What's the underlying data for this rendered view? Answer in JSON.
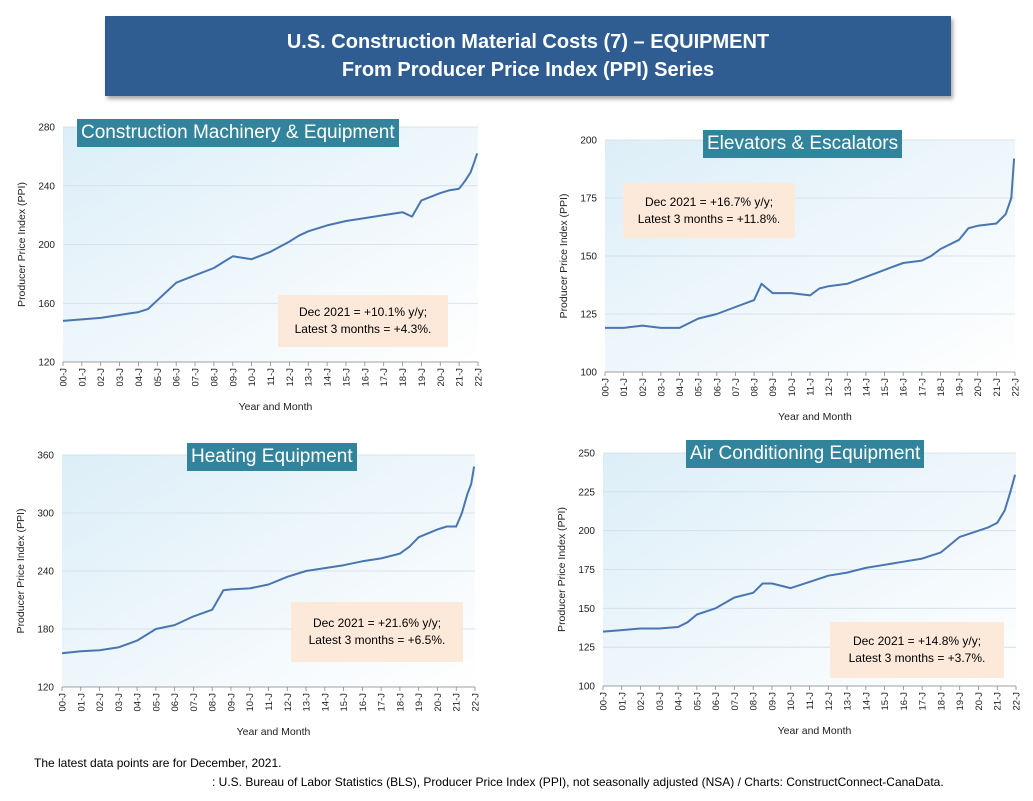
{
  "header": {
    "title_line1": "U.S. Construction Material Costs (7) – EQUIPMENT",
    "title_line2": "From Producer Price Index (PPI) Series"
  },
  "colors": {
    "banner": "#2f5d91",
    "title_box": "#31849b",
    "annotation": "#fde9d9",
    "line": "#4a76b0"
  },
  "footer": {
    "note": "The latest data points are for December, 2021.",
    "source": ": U.S. Bureau of Labor Statistics (BLS), Producer Price Index (PPI), not seasonally adjusted (NSA) / Charts: ConstructConnect-CanaData."
  },
  "chart_data": [
    {
      "type": "line",
      "title": "Construction Machinery & Equipment",
      "xlabel": "Year and Month",
      "ylabel": "Producer Price Index (PPI)",
      "ylim": [
        120,
        280
      ],
      "yticks": [
        "120",
        "160",
        "200",
        "240",
        "280"
      ],
      "xticks": [
        "00-J",
        "01-J",
        "02-J",
        "03-J",
        "04-J",
        "05-J",
        "06-J",
        "07-J",
        "08-J",
        "09-J",
        "10-J",
        "11-J",
        "12-J",
        "13-J",
        "14-J",
        "15-J",
        "16-J",
        "17-J",
        "18-J",
        "19-J",
        "20-J",
        "21-J",
        "22-J"
      ],
      "annotation": [
        "Dec 2021 = +10.1% y/y;",
        "Latest 3 months = +4.3%."
      ],
      "series": [
        {
          "x": [
            2000,
            2001,
            2002,
            2003,
            2003.5,
            2004,
            2004.5,
            2005,
            2005.5,
            2006,
            2007,
            2008,
            2008.5,
            2009,
            2009.5,
            2010,
            2011,
            2012,
            2012.5,
            2013,
            2014,
            2015,
            2016,
            2017,
            2018,
            2018.5,
            2019,
            2020,
            2020.5,
            2021,
            2021.3,
            2021.6,
            2021.8,
            2021.95
          ],
          "y": [
            148,
            149,
            150,
            152,
            153,
            154,
            156,
            162,
            168,
            174,
            179,
            184,
            188,
            192,
            191,
            190,
            195,
            202,
            206,
            209,
            213,
            216,
            218,
            220,
            222,
            219,
            230,
            235,
            237,
            238,
            243,
            249,
            256,
            262
          ]
        }
      ]
    },
    {
      "type": "line",
      "title": "Elevators & Escalators",
      "xlabel": "Year and Month",
      "ylabel": "Producer Price Index (PPI)",
      "ylim": [
        100,
        200
      ],
      "yticks": [
        "100",
        "125",
        "150",
        "175",
        "200"
      ],
      "xticks": [
        "00-J",
        "01-J",
        "02-J",
        "03-J",
        "04-J",
        "05-J",
        "06-J",
        "07-J",
        "08-J",
        "09-J",
        "10-J",
        "11-J",
        "12-J",
        "13-J",
        "14-J",
        "15-J",
        "16-J",
        "17-J",
        "18-J",
        "19-J",
        "20-J",
        "21-J",
        "22-J"
      ],
      "annotation": [
        "Dec 2021 = +16.7% y/y;",
        "Latest 3 months = +11.8%."
      ],
      "series": [
        {
          "x": [
            2000,
            2001,
            2002,
            2003,
            2004,
            2005,
            2006,
            2007,
            2008,
            2008.4,
            2008.7,
            2009,
            2009.5,
            2010,
            2011,
            2011.5,
            2012,
            2013,
            2014,
            2015,
            2016,
            2017,
            2017.5,
            2018,
            2019,
            2019.5,
            2020,
            2021,
            2021.5,
            2021.8,
            2021.95
          ],
          "y": [
            119,
            119,
            120,
            119,
            119,
            123,
            125,
            128,
            131,
            138,
            136,
            134,
            134,
            134,
            133,
            136,
            137,
            138,
            141,
            144,
            147,
            148,
            150,
            153,
            157,
            162,
            163,
            164,
            168,
            175,
            192
          ]
        }
      ]
    },
    {
      "type": "line",
      "title": "Heating Equipment",
      "xlabel": "Year and Month",
      "ylabel": "Producer Price Index (PPI)",
      "ylim": [
        120,
        360
      ],
      "yticks": [
        "120",
        "180",
        "240",
        "300",
        "360"
      ],
      "xticks": [
        "00-J",
        "01-J",
        "02-J",
        "03-J",
        "04-J",
        "05-J",
        "06-J",
        "07-J",
        "08-J",
        "09-J",
        "10-J",
        "11-J",
        "12-J",
        "13-J",
        "14-J",
        "15-J",
        "16-J",
        "17-J",
        "18-J",
        "19-J",
        "20-J",
        "21-J",
        "22-J"
      ],
      "annotation": [
        "Dec 2021 = +21.6% y/y;",
        "Latest 3 months = +6.5%."
      ],
      "series": [
        {
          "x": [
            2000,
            2001,
            2002,
            2003,
            2004,
            2005,
            2006,
            2007,
            2008,
            2008.3,
            2008.6,
            2009,
            2010,
            2011,
            2012,
            2013,
            2014,
            2015,
            2016,
            2017,
            2018,
            2018.5,
            2019,
            2020,
            2020.5,
            2021,
            2021.3,
            2021.6,
            2021.8,
            2021.95
          ],
          "y": [
            155,
            157,
            158,
            161,
            168,
            180,
            184,
            193,
            200,
            210,
            220,
            221,
            222,
            226,
            234,
            240,
            243,
            246,
            250,
            253,
            258,
            265,
            275,
            283,
            286,
            286,
            300,
            320,
            330,
            348
          ]
        }
      ]
    },
    {
      "type": "line",
      "title": "Air Conditioning Equipment",
      "xlabel": "Year and Month",
      "ylabel": "Producer Price Index (PPI)",
      "ylim": [
        100,
        250
      ],
      "yticks": [
        "100",
        "125",
        "150",
        "175",
        "200",
        "225",
        "250"
      ],
      "xticks": [
        "00-J",
        "01-J",
        "02-J",
        "03-J",
        "04-J",
        "05-J",
        "06-J",
        "07-J",
        "08-J",
        "09-J",
        "10-J",
        "11-J",
        "12-J",
        "13-J",
        "14-J",
        "15-J",
        "16-J",
        "17-J",
        "18-J",
        "19-J",
        "20-J",
        "21-J",
        "22-J"
      ],
      "annotation": [
        "Dec 2021 = +14.8% y/y;",
        "Latest 3 months = +3.7%."
      ],
      "series": [
        {
          "x": [
            2000,
            2001,
            2002,
            2003,
            2004,
            2004.5,
            2005,
            2006,
            2007,
            2008,
            2008.5,
            2009,
            2010,
            2011,
            2012,
            2013,
            2014,
            2015,
            2016,
            2017,
            2018,
            2018.5,
            2019,
            2020,
            2020.5,
            2021,
            2021.4,
            2021.7,
            2021.95
          ],
          "y": [
            135,
            136,
            137,
            137,
            138,
            141,
            146,
            150,
            157,
            160,
            166,
            166,
            163,
            167,
            171,
            173,
            176,
            178,
            180,
            182,
            186,
            191,
            196,
            200,
            202,
            205,
            213,
            225,
            236
          ]
        }
      ]
    }
  ]
}
